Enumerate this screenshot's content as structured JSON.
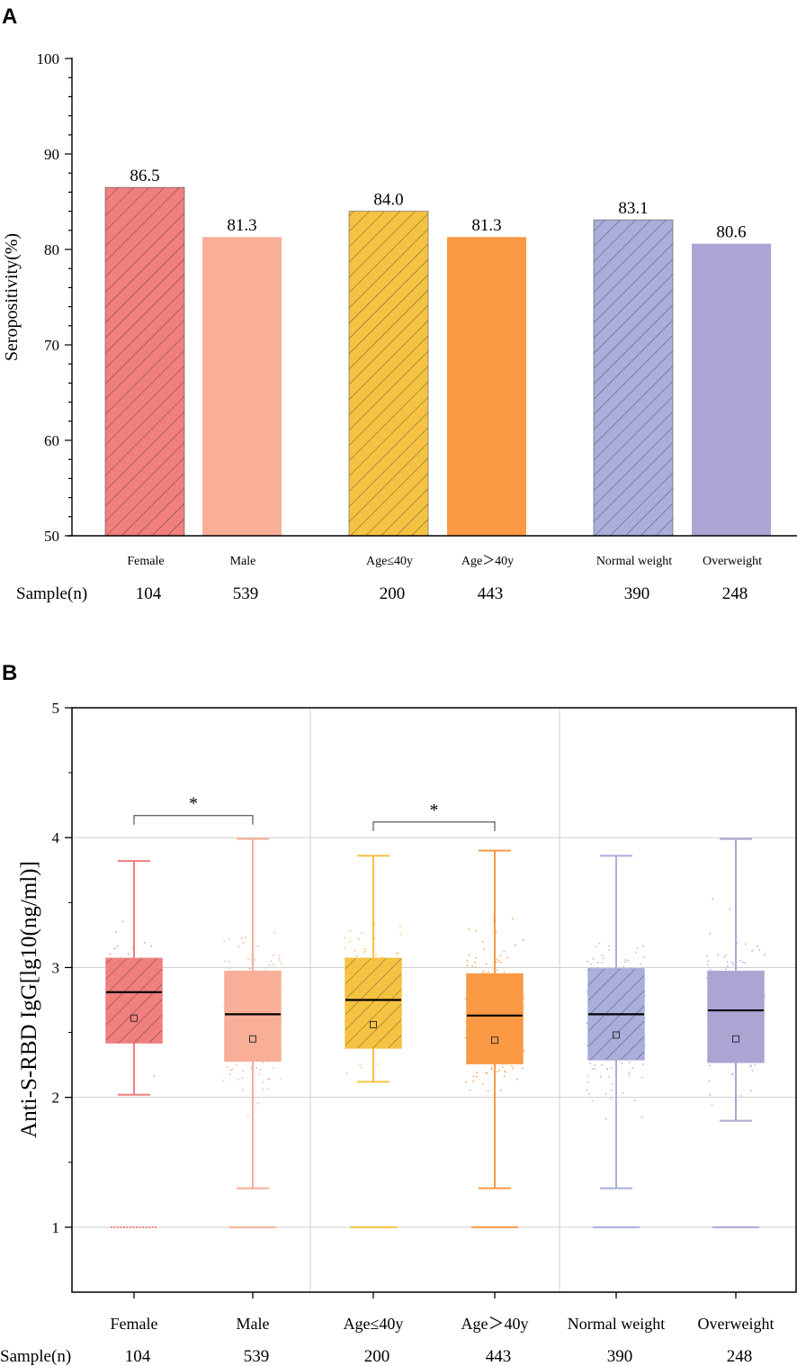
{
  "colors": {
    "female": "#F07F7E",
    "male": "#F8AE97",
    "age_le40": "#F6C242",
    "age_gt40": "#FB9944",
    "normal": "#A9AEDB",
    "over": "#AEA4D4"
  },
  "chart_data": [
    {
      "panel": "A",
      "type": "bar",
      "title": "",
      "xlabel": "",
      "ylabel": "Seropositivity(%)",
      "ylim": [
        50,
        100
      ],
      "yticks": [
        "50",
        "60",
        "70",
        "80",
        "90",
        "100"
      ],
      "categories": [
        "Female",
        "Male",
        "Age≤40y",
        "Age＞40y",
        "Normal weight",
        "Overweight"
      ],
      "values": [
        86.5,
        81.3,
        84.0,
        81.3,
        83.1,
        80.6
      ],
      "value_labels": [
        "86.5",
        "81.3",
        "84.0",
        "81.3",
        "83.1",
        "80.6"
      ],
      "hatched": [
        true,
        false,
        true,
        false,
        true,
        false
      ],
      "sample_label": "Sample(n)",
      "sample_n": [
        "104",
        "539",
        "200",
        "443",
        "390",
        "248"
      ]
    },
    {
      "panel": "B",
      "type": "box",
      "title": "",
      "xlabel": "",
      "ylabel": "Anti-S-RBD IgG[lg10(ng/ml)]",
      "ylim": [
        0.5,
        5
      ],
      "yticks": [
        "1",
        "2",
        "3",
        "4",
        "5"
      ],
      "categories": [
        "Female",
        "Male",
        "Age≤40y",
        "Age＞40y",
        "Normal weight",
        "Overweight"
      ],
      "hatched": [
        true,
        false,
        true,
        false,
        true,
        false
      ],
      "boxes": [
        {
          "whisker_low": 2.02,
          "q1": 2.42,
          "median": 2.81,
          "q3": 3.07,
          "whisker_high": 3.82,
          "mean": 2.61
        },
        {
          "whisker_low": 1.3,
          "q1": 2.28,
          "median": 2.64,
          "q3": 2.97,
          "whisker_high": 3.99,
          "mean": 2.45
        },
        {
          "whisker_low": 2.12,
          "q1": 2.38,
          "median": 2.75,
          "q3": 3.07,
          "whisker_high": 3.86,
          "mean": 2.56
        },
        {
          "whisker_low": 1.3,
          "q1": 2.26,
          "median": 2.63,
          "q3": 2.95,
          "whisker_high": 3.9,
          "mean": 2.44
        },
        {
          "whisker_low": 1.3,
          "q1": 2.29,
          "median": 2.64,
          "q3": 2.99,
          "whisker_high": 3.86,
          "mean": 2.48
        },
        {
          "whisker_low": 1.82,
          "q1": 2.27,
          "median": 2.67,
          "q3": 2.97,
          "whisker_high": 3.99,
          "mean": 2.45
        }
      ],
      "floor_value": 1.0,
      "significance": [
        {
          "between": [
            0,
            1
          ],
          "label": "*",
          "level": 4.17
        },
        {
          "between": [
            2,
            3
          ],
          "label": "*",
          "level": 4.12
        }
      ],
      "sample_label": "Sample(n)",
      "sample_n": [
        "104",
        "539",
        "200",
        "443",
        "390",
        "248"
      ]
    }
  ]
}
